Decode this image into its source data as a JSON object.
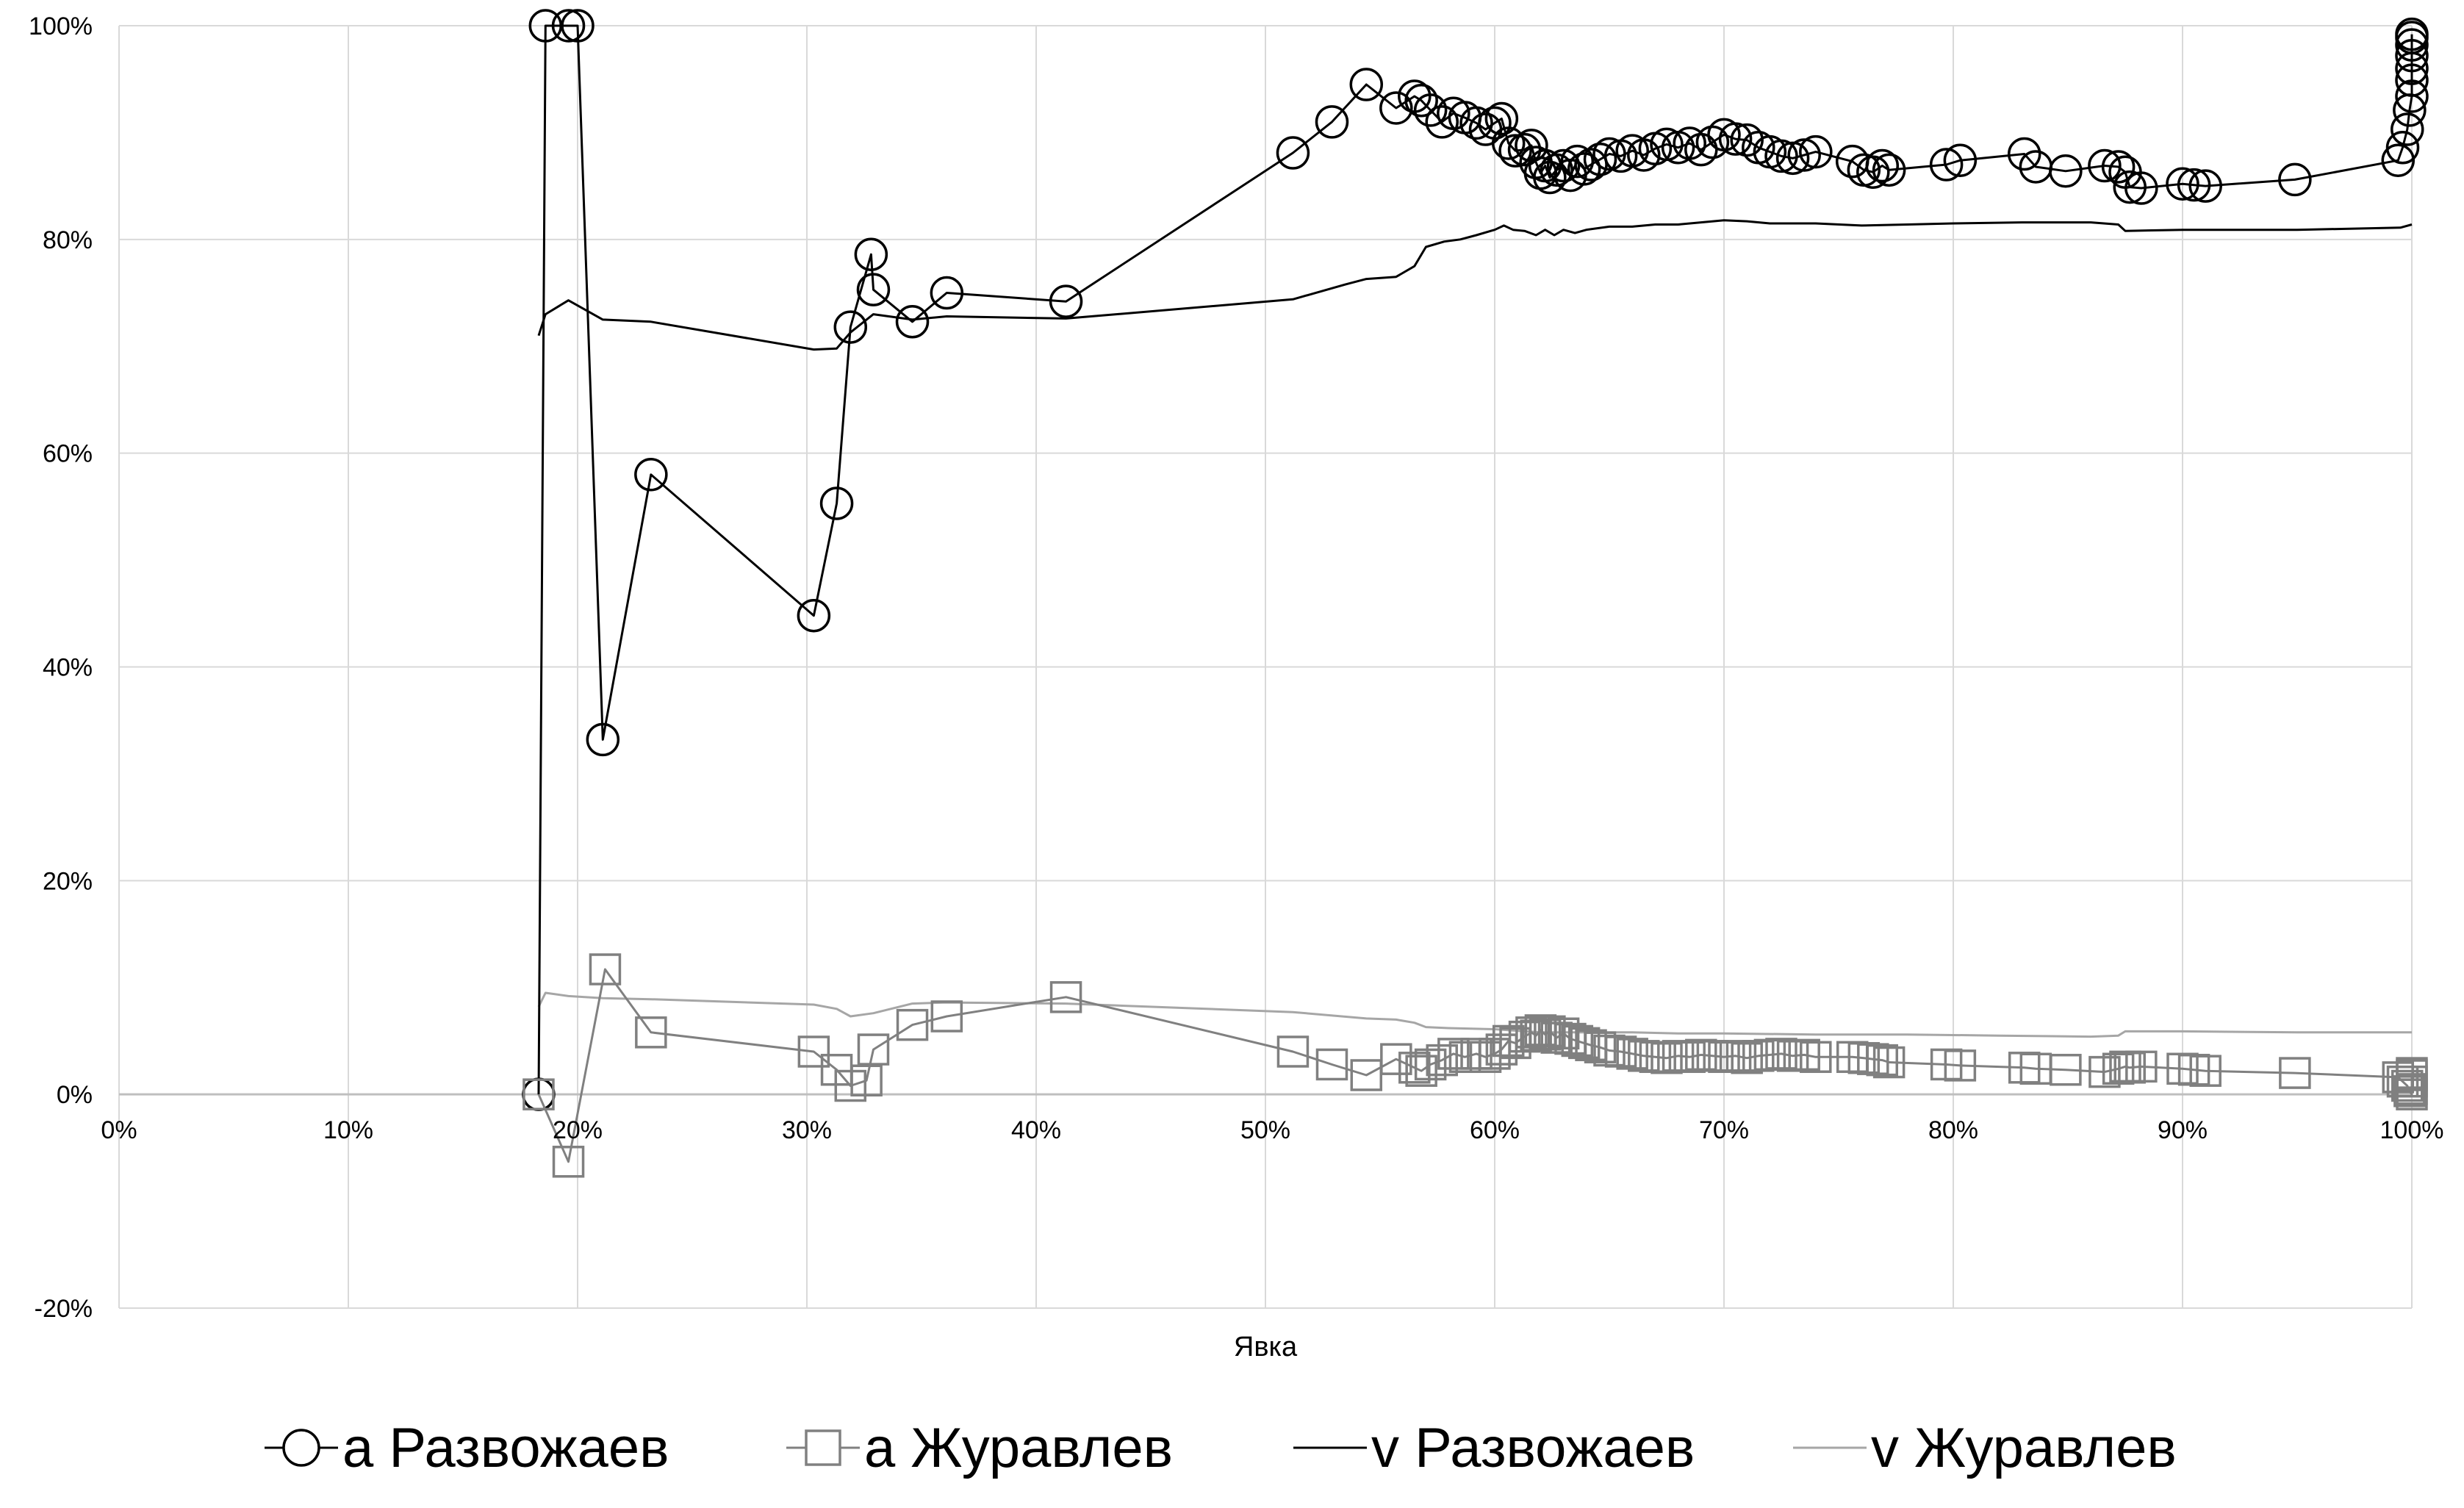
{
  "chart_data": {
    "type": "line",
    "title": "",
    "xlabel": "Явка",
    "ylabel": "",
    "xlim": [
      0,
      100
    ],
    "ylim": [
      -20,
      100
    ],
    "x_ticks": [
      0,
      10,
      20,
      30,
      40,
      50,
      60,
      70,
      80,
      90,
      100
    ],
    "y_ticks": [
      -20,
      0,
      20,
      40,
      60,
      80,
      100
    ],
    "x_tick_labels": [
      "0%",
      "10%",
      "20%",
      "30%",
      "40%",
      "50%",
      "60%",
      "70%",
      "80%",
      "90%",
      "100%"
    ],
    "y_tick_labels": [
      "-20%",
      "0%",
      "20%",
      "40%",
      "60%",
      "80%",
      "100%"
    ],
    "grid": true,
    "legend_position": "bottom",
    "series": [
      {
        "name": "а Развожаев",
        "marker": "circle",
        "color": "#000000",
        "points": [
          [
            18.3,
            0
          ],
          [
            18.6,
            100
          ],
          [
            19.6,
            100
          ],
          [
            20.0,
            100
          ],
          [
            21.1,
            33.2
          ],
          [
            23.2,
            58.0
          ],
          [
            30.3,
            44.8
          ],
          [
            31.3,
            55.3
          ],
          [
            31.9,
            71.8
          ],
          [
            32.8,
            78.6
          ],
          [
            32.9,
            75.3
          ],
          [
            34.6,
            72.3
          ],
          [
            36.1,
            75.0
          ],
          [
            41.3,
            74.2
          ],
          [
            51.2,
            88.1
          ],
          [
            52.9,
            91.0
          ],
          [
            54.4,
            94.5
          ],
          [
            55.7,
            92.3
          ],
          [
            56.5,
            93.4
          ],
          [
            56.8,
            93.0
          ],
          [
            57.2,
            92.1
          ],
          [
            57.7,
            91.0
          ],
          [
            58.2,
            91.8
          ],
          [
            58.7,
            91.4
          ],
          [
            59.2,
            90.9
          ],
          [
            59.6,
            90.3
          ],
          [
            60.0,
            90.9
          ],
          [
            60.3,
            91.3
          ],
          [
            60.6,
            89.0
          ],
          [
            60.9,
            88.3
          ],
          [
            61.3,
            88.4
          ],
          [
            61.6,
            88.8
          ],
          [
            61.8,
            87.2
          ],
          [
            62.0,
            86.2
          ],
          [
            62.2,
            86.9
          ],
          [
            62.4,
            85.8
          ],
          [
            62.7,
            86.5
          ],
          [
            63.0,
            86.9
          ],
          [
            63.3,
            86.0
          ],
          [
            63.6,
            87.3
          ],
          [
            63.9,
            86.6
          ],
          [
            64.2,
            87.0
          ],
          [
            64.6,
            87.5
          ],
          [
            65.0,
            88.0
          ],
          [
            65.5,
            87.8
          ],
          [
            66.0,
            88.3
          ],
          [
            66.5,
            87.9
          ],
          [
            67.0,
            88.5
          ],
          [
            67.5,
            88.9
          ],
          [
            68.0,
            88.6
          ],
          [
            68.5,
            89.0
          ],
          [
            69.0,
            88.4
          ],
          [
            69.5,
            89.1
          ],
          [
            70.0,
            89.8
          ],
          [
            70.5,
            89.4
          ],
          [
            71.0,
            89.3
          ],
          [
            71.5,
            88.6
          ],
          [
            72.0,
            88.2
          ],
          [
            72.5,
            87.8
          ],
          [
            73.0,
            87.6
          ],
          [
            73.5,
            87.9
          ],
          [
            74.0,
            88.2
          ],
          [
            75.6,
            87.3
          ],
          [
            76.1,
            86.5
          ],
          [
            76.5,
            86.3
          ],
          [
            76.9,
            86.9
          ],
          [
            77.2,
            86.5
          ],
          [
            79.7,
            87.0
          ],
          [
            80.3,
            87.4
          ],
          [
            83.1,
            88.0
          ],
          [
            83.6,
            86.8
          ],
          [
            84.9,
            86.4
          ],
          [
            86.6,
            86.9
          ],
          [
            87.2,
            86.8
          ],
          [
            87.5,
            86.3
          ],
          [
            87.7,
            84.9
          ],
          [
            88.2,
            84.8
          ],
          [
            90.0,
            85.2
          ],
          [
            90.5,
            85.1
          ],
          [
            91.0,
            85.0
          ],
          [
            94.9,
            85.6
          ],
          [
            99.4,
            87.4
          ],
          [
            99.6,
            88.6
          ],
          [
            99.8,
            90.3
          ],
          [
            99.9,
            92.1
          ],
          [
            100.0,
            93.4
          ],
          [
            100.0,
            94.9
          ],
          [
            100.0,
            96.0
          ],
          [
            100.0,
            97.2
          ],
          [
            100.0,
            98.2
          ],
          [
            100.0,
            98.9
          ],
          [
            100.0,
            99.2
          ]
        ]
      },
      {
        "name": "а Журавлев",
        "marker": "square",
        "color": "#808080",
        "points": [
          [
            18.3,
            0
          ],
          [
            19.6,
            -6.3
          ],
          [
            21.2,
            11.7
          ],
          [
            23.2,
            5.8
          ],
          [
            30.3,
            4.0
          ],
          [
            31.3,
            2.3
          ],
          [
            31.9,
            0.8
          ],
          [
            32.6,
            1.3
          ],
          [
            32.9,
            4.2
          ],
          [
            34.6,
            6.5
          ],
          [
            36.1,
            7.3
          ],
          [
            41.3,
            9.1
          ],
          [
            51.2,
            4.0
          ],
          [
            52.9,
            2.8
          ],
          [
            54.4,
            1.8
          ],
          [
            55.7,
            3.3
          ],
          [
            56.5,
            2.5
          ],
          [
            56.8,
            2.2
          ],
          [
            57.2,
            2.8
          ],
          [
            57.7,
            3.2
          ],
          [
            58.2,
            3.8
          ],
          [
            58.7,
            3.5
          ],
          [
            59.2,
            3.8
          ],
          [
            59.6,
            3.5
          ],
          [
            60.0,
            3.8
          ],
          [
            60.3,
            4.2
          ],
          [
            60.6,
            5.0
          ],
          [
            60.9,
            4.8
          ],
          [
            61.3,
            5.4
          ],
          [
            61.6,
            5.8
          ],
          [
            61.8,
            5.5
          ],
          [
            62.0,
            6.0
          ],
          [
            62.2,
            5.6
          ],
          [
            62.4,
            5.9
          ],
          [
            62.7,
            5.3
          ],
          [
            63.0,
            5.7
          ],
          [
            63.3,
            5.2
          ],
          [
            63.6,
            5.0
          ],
          [
            63.9,
            4.8
          ],
          [
            64.2,
            4.6
          ],
          [
            64.6,
            4.4
          ],
          [
            65.0,
            4.1
          ],
          [
            65.5,
            4.0
          ],
          [
            66.0,
            3.8
          ],
          [
            66.5,
            3.6
          ],
          [
            67.0,
            3.5
          ],
          [
            67.5,
            3.4
          ],
          [
            68.0,
            3.6
          ],
          [
            68.5,
            3.5
          ],
          [
            69.0,
            3.7
          ],
          [
            69.5,
            3.6
          ],
          [
            70.0,
            3.5
          ],
          [
            70.5,
            3.6
          ],
          [
            71.0,
            3.4
          ],
          [
            71.5,
            3.6
          ],
          [
            72.0,
            3.7
          ],
          [
            72.5,
            3.8
          ],
          [
            73.0,
            3.6
          ],
          [
            73.5,
            3.7
          ],
          [
            74.0,
            3.5
          ],
          [
            75.6,
            3.5
          ],
          [
            76.1,
            3.4
          ],
          [
            76.5,
            3.3
          ],
          [
            76.9,
            3.2
          ],
          [
            77.2,
            3.0
          ],
          [
            79.7,
            2.8
          ],
          [
            80.3,
            2.7
          ],
          [
            83.1,
            2.5
          ],
          [
            83.6,
            2.4
          ],
          [
            84.9,
            2.3
          ],
          [
            86.6,
            2.1
          ],
          [
            87.2,
            2.4
          ],
          [
            87.5,
            2.6
          ],
          [
            87.7,
            2.5
          ],
          [
            88.2,
            2.6
          ],
          [
            90.0,
            2.4
          ],
          [
            90.5,
            2.3
          ],
          [
            91.0,
            2.2
          ],
          [
            94.9,
            2.0
          ],
          [
            99.4,
            1.6
          ],
          [
            99.6,
            1.2
          ],
          [
            99.8,
            0.8
          ],
          [
            99.9,
            0.3
          ],
          [
            100.0,
            0.0
          ],
          [
            100.0,
            0.5
          ],
          [
            100.0,
            1.2
          ],
          [
            100.0,
            1.8
          ],
          [
            100.0,
            2.0
          ]
        ]
      },
      {
        "name": "v Развожаев",
        "marker": "none",
        "color": "#000000",
        "points": [
          [
            18.3,
            71.0
          ],
          [
            18.6,
            73.0
          ],
          [
            19.6,
            74.3
          ],
          [
            21.1,
            72.5
          ],
          [
            23.2,
            72.3
          ],
          [
            30.3,
            69.7
          ],
          [
            31.3,
            69.8
          ],
          [
            31.9,
            71.3
          ],
          [
            32.9,
            73.0
          ],
          [
            34.6,
            72.5
          ],
          [
            36.1,
            72.8
          ],
          [
            41.3,
            72.6
          ],
          [
            51.2,
            74.4
          ],
          [
            53.5,
            75.8
          ],
          [
            54.4,
            76.3
          ],
          [
            55.7,
            76.5
          ],
          [
            56.5,
            77.5
          ],
          [
            57.0,
            79.3
          ],
          [
            57.8,
            79.8
          ],
          [
            58.5,
            80.0
          ],
          [
            59.2,
            80.4
          ],
          [
            60.0,
            80.9
          ],
          [
            60.4,
            81.3
          ],
          [
            60.8,
            80.9
          ],
          [
            61.3,
            80.8
          ],
          [
            61.8,
            80.4
          ],
          [
            62.2,
            80.9
          ],
          [
            62.6,
            80.4
          ],
          [
            63.0,
            80.9
          ],
          [
            63.5,
            80.6
          ],
          [
            64.0,
            80.9
          ],
          [
            65.0,
            81.2
          ],
          [
            66.0,
            81.2
          ],
          [
            67.0,
            81.4
          ],
          [
            68.0,
            81.4
          ],
          [
            69.0,
            81.6
          ],
          [
            70.0,
            81.8
          ],
          [
            71.0,
            81.7
          ],
          [
            72.0,
            81.5
          ],
          [
            74.0,
            81.5
          ],
          [
            76.0,
            81.3
          ],
          [
            78.0,
            81.4
          ],
          [
            80.0,
            81.5
          ],
          [
            83.0,
            81.6
          ],
          [
            86.0,
            81.6
          ],
          [
            87.2,
            81.4
          ],
          [
            87.5,
            80.8
          ],
          [
            90.0,
            80.9
          ],
          [
            95.0,
            80.9
          ],
          [
            99.5,
            81.1
          ],
          [
            100.0,
            81.4
          ]
        ]
      },
      {
        "name": "v Журавлев",
        "marker": "none",
        "color": "#a6a6a6",
        "points": [
          [
            18.3,
            8.2
          ],
          [
            18.6,
            9.5
          ],
          [
            19.6,
            9.2
          ],
          [
            21.1,
            9.0
          ],
          [
            23.2,
            8.9
          ],
          [
            30.3,
            8.4
          ],
          [
            31.3,
            8.0
          ],
          [
            31.9,
            7.3
          ],
          [
            32.9,
            7.6
          ],
          [
            34.6,
            8.5
          ],
          [
            36.1,
            8.6
          ],
          [
            41.3,
            8.5
          ],
          [
            51.2,
            7.7
          ],
          [
            54.4,
            7.1
          ],
          [
            55.7,
            7.0
          ],
          [
            56.5,
            6.7
          ],
          [
            57.0,
            6.3
          ],
          [
            58.0,
            6.2
          ],
          [
            60.0,
            6.1
          ],
          [
            62.0,
            5.8
          ],
          [
            64.0,
            5.8
          ],
          [
            66.0,
            5.8
          ],
          [
            68.0,
            5.7
          ],
          [
            70.0,
            5.7
          ],
          [
            74.0,
            5.6
          ],
          [
            78.0,
            5.6
          ],
          [
            82.0,
            5.5
          ],
          [
            86.0,
            5.4
          ],
          [
            87.2,
            5.5
          ],
          [
            87.5,
            5.9
          ],
          [
            90.0,
            5.9
          ],
          [
            95.0,
            5.8
          ],
          [
            100.0,
            5.8
          ]
        ]
      }
    ],
    "raw_lines": [
      {
        "series": "а Развожаев",
        "color": "#000000",
        "points": [
          [
            18.3,
            0
          ],
          [
            18.6,
            100
          ],
          [
            19.6,
            100
          ],
          [
            20.0,
            100
          ],
          [
            21.1,
            33.2
          ],
          [
            23.2,
            58.0
          ],
          [
            30.3,
            44.8
          ],
          [
            31.3,
            55.3
          ],
          [
            31.9,
            71.8
          ],
          [
            32.8,
            78.6
          ],
          [
            32.9,
            75.3
          ],
          [
            34.6,
            72.3
          ],
          [
            36.1,
            75.0
          ],
          [
            41.3,
            74.2
          ],
          [
            51.2,
            88.1
          ],
          [
            52.9,
            91.0
          ],
          [
            54.4,
            94.5
          ],
          [
            55.7,
            92.3
          ]
        ]
      },
      {
        "series": "а Журавлев",
        "color": "#808080",
        "points": [
          [
            18.3,
            0
          ],
          [
            19.6,
            -6.3
          ],
          [
            21.2,
            11.7
          ],
          [
            23.2,
            5.8
          ],
          [
            30.3,
            4.0
          ],
          [
            31.3,
            2.3
          ],
          [
            31.9,
            0.8
          ],
          [
            32.6,
            1.3
          ],
          [
            32.9,
            4.2
          ],
          [
            34.6,
            6.5
          ],
          [
            36.1,
            7.3
          ],
          [
            41.3,
            9.1
          ],
          [
            51.2,
            4.0
          ],
          [
            52.9,
            2.8
          ],
          [
            54.4,
            1.8
          ]
        ]
      }
    ]
  }
}
